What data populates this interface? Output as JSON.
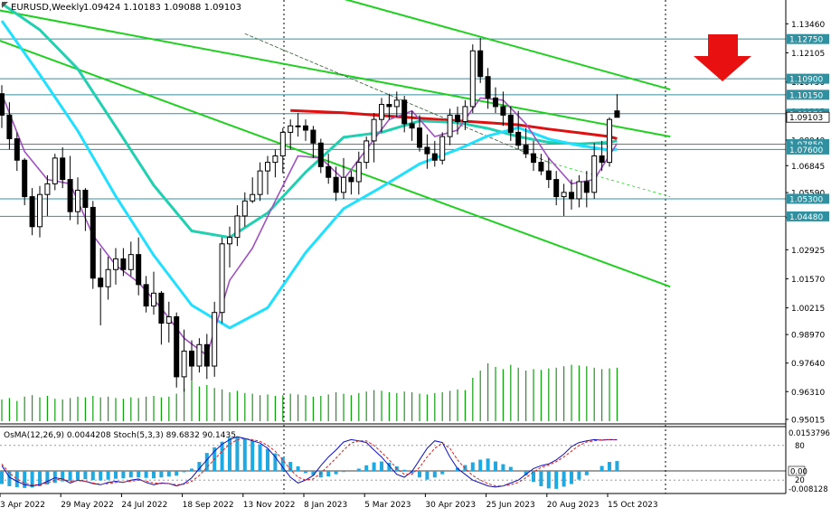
{
  "header": {
    "symbol_timeframe": "EURUSD,Weekly",
    "ohlc": "1.09424 1.10183 1.09088 1.09103"
  },
  "oscillator_header": "OsMA(12,26,9) 0.0044208  Stoch(5,3,3) 89.6832 90.1435",
  "colors": {
    "ma_red": "#e01010",
    "ma_teal": "#20d0b0",
    "ma_cyan": "#20e0ff",
    "ma_purple": "#a050c0",
    "channel_green": "#20d020",
    "volume_green": "#10a010",
    "osma_bars": "#20a8e0",
    "stoch_main": "#1010c0",
    "stoch_signal": "#e02020",
    "level_line": "#3090a0",
    "arrow_red": "#e81010",
    "candle_bull_fill": "#ffffff",
    "candle_bear_fill": "#000000"
  },
  "chart_data": {
    "type": "candlestick",
    "title": "EURUSD,Weekly",
    "y_tick_labels": [
      "1.13460",
      "1.12105",
      "1.10750",
      "1.09395",
      "1.08040",
      "1.06845",
      "1.05590",
      "1.04420",
      "1.02925",
      "1.01570",
      "1.00215",
      "0.98970",
      "0.97640",
      "0.96310",
      "0.95015"
    ],
    "y_ticks": [
      1.1346,
      1.12105,
      1.1075,
      1.09395,
      1.0804,
      1.06845,
      1.0559,
      1.0442,
      1.02925,
      1.0157,
      1.00215,
      0.9897,
      0.9764,
      0.9631,
      0.95015
    ],
    "ylim": [
      0.9493,
      1.1398
    ],
    "x_tick_labels": [
      "3 Apr 2022",
      "29 May 2022",
      "24 Jul 2022",
      "18 Sep 2022",
      "13 Nov 2022",
      "8 Jan 2023",
      "5 Mar 2023",
      "30 Apr 2023",
      "25 Jun 2023",
      "20 Aug 2023",
      "15 Oct 2023"
    ],
    "x_tick_bar_index": [
      0,
      8,
      16,
      24,
      32,
      40,
      48,
      56,
      64,
      72,
      80
    ],
    "price_levels": [
      {
        "label": "1.12750",
        "value": 1.1275
      },
      {
        "label": "1.10900",
        "value": 1.109
      },
      {
        "label": "1.10150",
        "value": 1.1015
      },
      {
        "label": "1.09270",
        "value": 1.0927
      },
      {
        "label": "1.07850",
        "value": 1.0785
      },
      {
        "label": "1.07600",
        "value": 1.076
      },
      {
        "label": "1.05300",
        "value": 1.053
      },
      {
        "label": "1.04480",
        "value": 1.0448
      }
    ],
    "current_price": {
      "label": "1.09103",
      "value": 1.09103
    },
    "candles": [
      [
        1.102,
        1.106,
        1.086,
        1.092
      ],
      [
        1.092,
        1.098,
        1.076,
        1.081
      ],
      [
        1.081,
        1.084,
        1.066,
        1.071
      ],
      [
        1.071,
        1.072,
        1.05,
        1.054
      ],
      [
        1.054,
        1.058,
        1.036,
        1.04
      ],
      [
        1.04,
        1.059,
        1.035,
        1.055
      ],
      [
        1.055,
        1.064,
        1.045,
        1.06
      ],
      [
        1.06,
        1.074,
        1.057,
        1.072
      ],
      [
        1.072,
        1.077,
        1.058,
        1.062
      ],
      [
        1.062,
        1.073,
        1.043,
        1.047
      ],
      [
        1.047,
        1.063,
        1.041,
        1.057
      ],
      [
        1.057,
        1.058,
        1.038,
        1.049
      ],
      [
        1.049,
        1.052,
        1.011,
        1.016
      ],
      [
        1.016,
        1.03,
        0.994,
        1.012
      ],
      [
        1.012,
        1.026,
        1.006,
        1.02
      ],
      [
        1.02,
        1.03,
        1.013,
        1.025
      ],
      [
        1.025,
        1.03,
        1.017,
        1.02
      ],
      [
        1.02,
        1.033,
        1.017,
        1.027
      ],
      [
        1.027,
        1.035,
        1.008,
        1.013
      ],
      [
        1.013,
        1.017,
        1.0,
        1.003
      ],
      [
        1.003,
        1.019,
        0.999,
        1.009
      ],
      [
        1.009,
        1.01,
        0.985,
        0.995
      ],
      [
        0.995,
        1.005,
        0.986,
        0.998
      ],
      [
        0.998,
        1.0,
        0.965,
        0.97
      ],
      [
        0.97,
        0.992,
        0.963,
        0.982
      ],
      [
        0.982,
        0.987,
        0.968,
        0.975
      ],
      [
        0.975,
        0.988,
        0.972,
        0.985
      ],
      [
        0.985,
        0.99,
        0.969,
        0.975
      ],
      [
        0.975,
        1.005,
        0.97,
        1.0
      ],
      [
        1.0,
        1.035,
        0.995,
        1.032
      ],
      [
        1.032,
        1.04,
        1.021,
        1.035
      ],
      [
        1.035,
        1.05,
        1.031,
        1.045
      ],
      [
        1.045,
        1.056,
        1.04,
        1.052
      ],
      [
        1.052,
        1.063,
        1.051,
        1.055
      ],
      [
        1.055,
        1.07,
        1.052,
        1.066
      ],
      [
        1.066,
        1.073,
        1.055,
        1.07
      ],
      [
        1.07,
        1.076,
        1.063,
        1.073
      ],
      [
        1.073,
        1.086,
        1.065,
        1.084
      ],
      [
        1.084,
        1.09,
        1.076,
        1.087
      ],
      [
        1.087,
        1.093,
        1.082,
        1.087
      ],
      [
        1.087,
        1.09,
        1.08,
        1.085
      ],
      [
        1.085,
        1.087,
        1.072,
        1.079
      ],
      [
        1.079,
        1.081,
        1.065,
        1.068
      ],
      [
        1.068,
        1.074,
        1.06,
        1.063
      ],
      [
        1.063,
        1.068,
        1.052,
        1.056
      ],
      [
        1.056,
        1.072,
        1.053,
        1.063
      ],
      [
        1.063,
        1.066,
        1.055,
        1.061
      ],
      [
        1.061,
        1.075,
        1.055,
        1.07
      ],
      [
        1.07,
        1.082,
        1.067,
        1.08
      ],
      [
        1.08,
        1.093,
        1.07,
        1.09
      ],
      [
        1.09,
        1.1,
        1.084,
        1.097
      ],
      [
        1.097,
        1.102,
        1.09,
        1.096
      ],
      [
        1.096,
        1.103,
        1.091,
        1.099
      ],
      [
        1.099,
        1.101,
        1.084,
        1.088
      ],
      [
        1.088,
        1.094,
        1.08,
        1.086
      ],
      [
        1.086,
        1.092,
        1.075,
        1.077
      ],
      [
        1.077,
        1.083,
        1.067,
        1.074
      ],
      [
        1.074,
        1.08,
        1.068,
        1.071
      ],
      [
        1.071,
        1.084,
        1.069,
        1.082
      ],
      [
        1.082,
        1.095,
        1.078,
        1.092
      ],
      [
        1.092,
        1.096,
        1.083,
        1.089
      ],
      [
        1.089,
        1.099,
        1.085,
        1.096
      ],
      [
        1.096,
        1.125,
        1.093,
        1.122
      ],
      [
        1.122,
        1.128,
        1.107,
        1.11
      ],
      [
        1.11,
        1.114,
        1.095,
        1.1
      ],
      [
        1.1,
        1.105,
        1.093,
        1.096
      ],
      [
        1.096,
        1.103,
        1.087,
        1.092
      ],
      [
        1.092,
        1.096,
        1.08,
        1.084
      ],
      [
        1.084,
        1.094,
        1.076,
        1.078
      ],
      [
        1.078,
        1.086,
        1.072,
        1.074
      ],
      [
        1.074,
        1.08,
        1.066,
        1.07
      ],
      [
        1.07,
        1.074,
        1.064,
        1.066
      ],
      [
        1.066,
        1.072,
        1.058,
        1.062
      ],
      [
        1.062,
        1.066,
        1.05,
        1.054
      ],
      [
        1.054,
        1.06,
        1.045,
        1.056
      ],
      [
        1.056,
        1.062,
        1.048,
        1.053
      ],
      [
        1.053,
        1.064,
        1.049,
        1.061
      ],
      [
        1.061,
        1.066,
        1.049,
        1.056
      ],
      [
        1.056,
        1.079,
        1.053,
        1.073
      ],
      [
        1.073,
        1.08,
        1.066,
        1.07
      ],
      [
        1.07,
        1.091,
        1.068,
        1.09
      ],
      [
        1.094,
        1.1018,
        1.0909,
        1.091
      ]
    ],
    "volume": [
      0.3,
      0.32,
      0.28,
      0.34,
      0.36,
      0.33,
      0.35,
      0.31,
      0.3,
      0.32,
      0.34,
      0.33,
      0.35,
      0.33,
      0.34,
      0.32,
      0.31,
      0.33,
      0.32,
      0.34,
      0.35,
      0.33,
      0.34,
      0.38,
      0.45,
      0.55,
      0.48,
      0.5,
      0.46,
      0.44,
      0.4,
      0.42,
      0.39,
      0.38,
      0.36,
      0.37,
      0.35,
      0.36,
      0.38,
      0.37,
      0.36,
      0.34,
      0.35,
      0.37,
      0.4,
      0.38,
      0.36,
      0.39,
      0.41,
      0.43,
      0.42,
      0.4,
      0.39,
      0.41,
      0.4,
      0.38,
      0.37,
      0.39,
      0.4,
      0.42,
      0.44,
      0.43,
      0.6,
      0.7,
      0.8,
      0.75,
      0.72,
      0.78,
      0.74,
      0.7,
      0.72,
      0.71,
      0.73,
      0.74,
      0.76,
      0.78,
      0.77,
      0.76,
      0.74,
      0.72,
      0.73,
      0.74
    ],
    "moving_averages": [
      {
        "color": "ma_red",
        "x": [
          38,
          45,
          50,
          55,
          60,
          64,
          68,
          72,
          76,
          80,
          81
        ],
        "y": [
          1.0942,
          1.0931,
          1.0918,
          1.0906,
          1.0894,
          1.0885,
          1.0875,
          1.0855,
          1.0838,
          1.082,
          1.081
        ]
      },
      {
        "color": "ma_teal",
        "x": [
          0,
          5,
          10,
          15,
          20,
          25,
          30,
          35,
          40,
          45,
          50,
          55,
          60,
          64,
          68,
          72,
          76,
          80,
          81
        ],
        "y": [
          1.144,
          1.1318,
          1.1136,
          1.0866,
          1.0593,
          1.038,
          1.035,
          1.0464,
          1.0654,
          1.0817,
          1.084,
          1.0893,
          1.0886,
          1.0858,
          1.082,
          1.0793,
          1.0786,
          1.0793,
          1.0801
        ]
      },
      {
        "color": "ma_cyan",
        "x": [
          0,
          5,
          10,
          15,
          20,
          25,
          30,
          35,
          40,
          45,
          50,
          55,
          60,
          64,
          68,
          72,
          76,
          80,
          81
        ],
        "y": [
          1.136,
          1.1109,
          1.0847,
          1.0542,
          1.0267,
          1.0034,
          0.9928,
          1.0022,
          1.0279,
          1.0484,
          1.0585,
          1.0693,
          1.076,
          1.0823,
          1.0862,
          1.0809,
          1.0779,
          1.0757,
          1.0761
        ]
      },
      {
        "color": "ma_purple",
        "x": [
          0,
          3,
          6,
          9,
          12,
          15,
          18,
          21,
          24,
          27,
          30,
          33,
          36,
          39,
          42,
          45,
          48,
          51,
          54,
          57,
          60,
          63,
          66,
          69,
          72,
          75,
          78,
          81
        ],
        "y": [
          1.102,
          1.075,
          1.062,
          1.06,
          1.036,
          1.022,
          1.014,
          1.002,
          0.988,
          0.98,
          1.015,
          1.03,
          1.052,
          1.073,
          1.072,
          1.062,
          1.076,
          1.09,
          1.094,
          1.082,
          1.085,
          1.1,
          1.099,
          1.088,
          1.072,
          1.06,
          1.062,
          1.0788
        ]
      }
    ],
    "channel_lines": [
      {
        "x": [
          -2,
          88
        ],
        "y": [
          1.142,
          1.082
        ],
        "dashed": false
      },
      {
        "x": [
          -2,
          88
        ],
        "y": [
          1.129,
          1.012
        ],
        "dashed": false
      },
      {
        "x": [
          44,
          88
        ],
        "y": [
          1.1472,
          1.104
        ],
        "dashed": false
      },
      {
        "x": [
          32,
          72
        ],
        "y": [
          1.13,
          1.07
        ],
        "dashed": false
      },
      {
        "x": [
          72,
          88
        ],
        "y": [
          1.07,
          1.054
        ],
        "dashed": true
      }
    ],
    "osma": [
      -0.006,
      -0.007,
      -0.0075,
      -0.0078,
      -0.0076,
      -0.007,
      -0.0062,
      -0.0055,
      -0.0048,
      -0.0045,
      -0.004,
      -0.0038,
      -0.0042,
      -0.0044,
      -0.004,
      -0.0036,
      -0.0034,
      -0.003,
      -0.003,
      -0.0032,
      -0.0034,
      -0.003,
      -0.0026,
      -0.0022,
      -0.0006,
      0.001,
      0.004,
      0.008,
      0.0105,
      0.013,
      0.0148,
      0.015,
      0.0145,
      0.0135,
      0.0118,
      0.0098,
      0.0078,
      0.006,
      0.004,
      0.002,
      -0.001,
      -0.002,
      -0.003,
      -0.0025,
      -0.0015,
      -0.0005,
      0.0,
      0.001,
      0.0025,
      0.0038,
      0.0042,
      0.0036,
      0.002,
      0.0005,
      -0.001,
      -0.003,
      -0.004,
      -0.003,
      -0.0015,
      0.0,
      0.0014,
      0.0026,
      0.0038,
      0.005,
      0.0055,
      0.0042,
      0.003,
      0.0018,
      0.0,
      -0.002,
      -0.005,
      -0.007,
      -0.008,
      -0.0082,
      -0.0072,
      -0.006,
      -0.004,
      -0.002,
      0.0,
      0.0022,
      0.004,
      0.0044
    ],
    "osma_axis_labels": [
      "0.0153796",
      "0.00",
      "-0.008128"
    ],
    "osma_range": [
      -0.0095,
      0.0165
    ],
    "stoch_main_y": [
      45,
      25,
      18,
      12,
      10,
      12,
      18,
      24,
      22,
      15,
      20,
      18,
      14,
      12,
      16,
      18,
      16,
      20,
      22,
      16,
      12,
      15,
      14,
      10,
      14,
      24,
      40,
      55,
      70,
      82,
      90,
      95,
      92,
      88,
      84,
      75,
      60,
      42,
      25,
      15,
      20,
      28,
      45,
      60,
      72,
      86,
      90,
      88,
      85,
      72,
      60,
      45,
      30,
      25,
      35,
      55,
      75,
      88,
      85,
      60,
      40,
      30,
      20,
      15,
      10,
      8,
      10,
      15,
      20,
      30,
      40,
      45,
      48,
      55,
      65,
      78,
      85,
      88,
      90,
      89,
      90,
      89.6832
    ],
    "stoch_signal_y": [
      48,
      32,
      22,
      15,
      12,
      12,
      15,
      20,
      22,
      18,
      19,
      18,
      15,
      13,
      14,
      16,
      17,
      18,
      20,
      18,
      15,
      14,
      14,
      12,
      13,
      18,
      28,
      42,
      56,
      70,
      82,
      90,
      92,
      90,
      87,
      80,
      70,
      55,
      38,
      25,
      20,
      22,
      32,
      45,
      58,
      72,
      84,
      88,
      88,
      80,
      68,
      55,
      40,
      30,
      30,
      42,
      60,
      75,
      84,
      75,
      55,
      40,
      28,
      20,
      14,
      10,
      10,
      12,
      16,
      24,
      34,
      42,
      46,
      52,
      60,
      70,
      80,
      86,
      88,
      90,
      90,
      90.1435
    ],
    "stoch_axis_labels": [
      "80",
      "20"
    ],
    "stoch_levels": [
      80,
      20
    ],
    "stoch_range": [
      0,
      100
    ]
  }
}
